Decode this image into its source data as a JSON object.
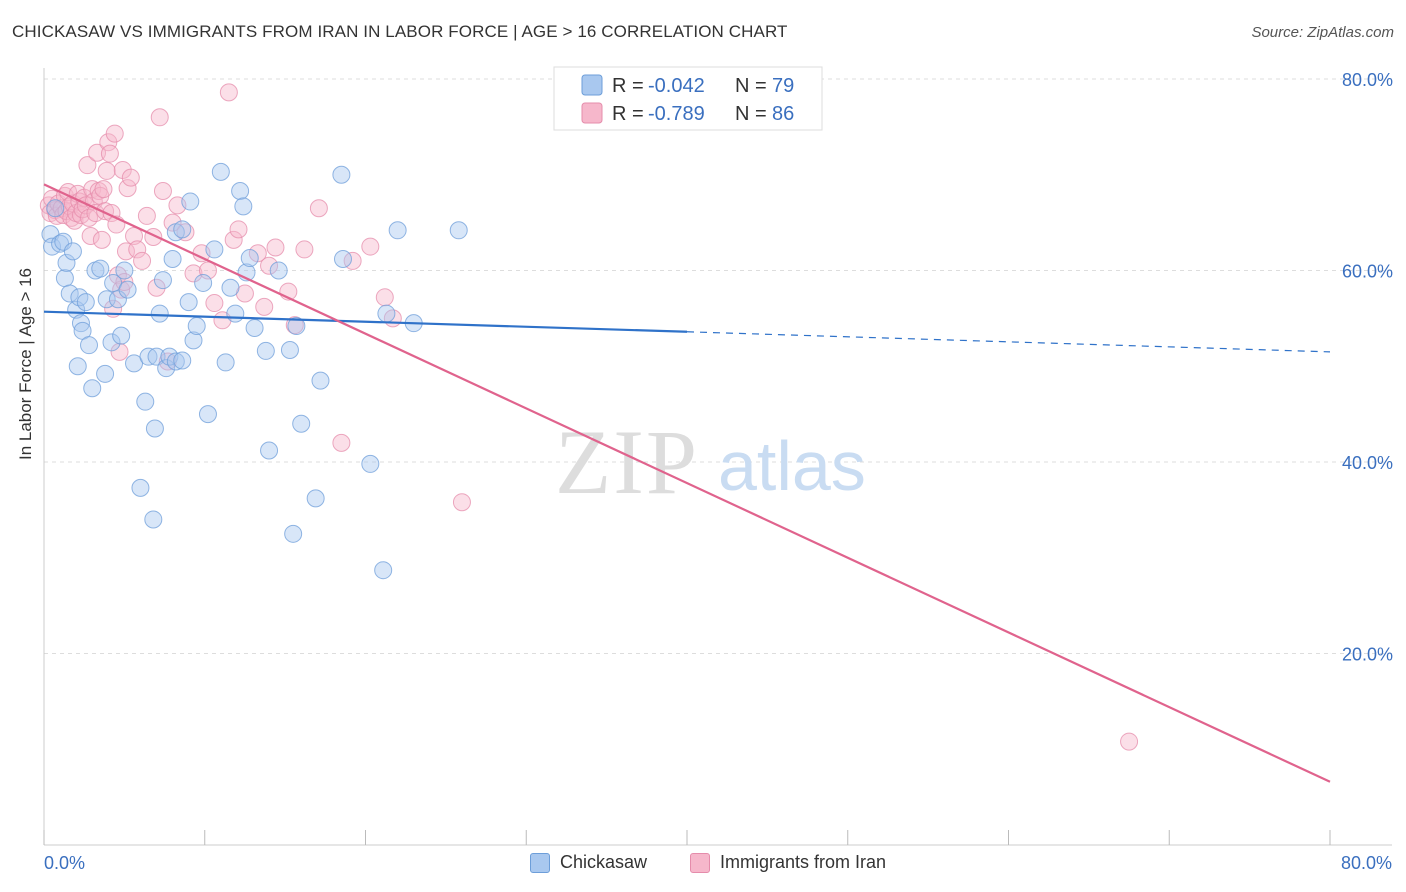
{
  "header": {
    "title": "CHICKASAW VS IMMIGRANTS FROM IRAN IN LABOR FORCE | AGE > 16 CORRELATION CHART",
    "source": "Source: ZipAtlas.com"
  },
  "watermark": {
    "zip": "ZIP",
    "atlas": "atlas"
  },
  "colors": {
    "chickasaw_fill": "#a9c8ef",
    "chickasaw_line": "#2f72c9",
    "iran_fill": "#f6b7cb",
    "iran_line": "#e0638d",
    "tick_label": "#3a6fbf",
    "grid": "#dddddd"
  },
  "legend_top": [
    {
      "r_label": "R = ",
      "r_value": "-0.042",
      "n_label": "N = ",
      "n_value": "79"
    },
    {
      "r_label": "R = ",
      "r_value": "-0.789",
      "n_label": "N = ",
      "n_value": "86"
    }
  ],
  "chart_data": {
    "type": "scatter",
    "title": "CHICKASAW VS IMMIGRANTS FROM IRAN IN LABOR FORCE | AGE > 16 CORRELATION CHART",
    "xlabel": "",
    "ylabel": "In Labor Force | Age > 16",
    "xlim": [
      0,
      80
    ],
    "ylim": [
      0,
      80
    ],
    "x_tick_labels": [
      "0.0%",
      "80.0%"
    ],
    "y_ticks": [
      20,
      40,
      60,
      80
    ],
    "y_tick_labels": [
      "20.0%",
      "40.0%",
      "60.0%",
      "80.0%"
    ],
    "grid": true,
    "legend_position": "bottom",
    "series": [
      {
        "name": "Chickasaw",
        "r": -0.042,
        "n": 79,
        "trend": {
          "x": [
            0,
            40,
            80
          ],
          "y": [
            55.7,
            53.6,
            51.5
          ],
          "solid_until": 40
        },
        "points": [
          [
            0.4,
            63.8
          ],
          [
            0.5,
            62.5
          ],
          [
            0.7,
            66.5
          ],
          [
            1.0,
            62.8
          ],
          [
            1.2,
            63.0
          ],
          [
            1.3,
            59.2
          ],
          [
            1.4,
            60.8
          ],
          [
            1.6,
            57.6
          ],
          [
            1.8,
            62.0
          ],
          [
            2.0,
            55.9
          ],
          [
            2.1,
            50.0
          ],
          [
            2.2,
            57.2
          ],
          [
            2.3,
            54.5
          ],
          [
            2.4,
            53.7
          ],
          [
            2.6,
            56.7
          ],
          [
            2.8,
            52.2
          ],
          [
            3.0,
            47.7
          ],
          [
            3.2,
            60.0
          ],
          [
            3.5,
            60.2
          ],
          [
            3.8,
            49.2
          ],
          [
            3.9,
            57.0
          ],
          [
            4.2,
            52.5
          ],
          [
            4.3,
            58.7
          ],
          [
            4.6,
            57.0
          ],
          [
            4.8,
            53.2
          ],
          [
            5.0,
            60.0
          ],
          [
            5.2,
            58.0
          ],
          [
            5.6,
            50.3
          ],
          [
            6.0,
            37.3
          ],
          [
            6.3,
            46.3
          ],
          [
            6.5,
            51.0
          ],
          [
            6.8,
            34.0
          ],
          [
            6.9,
            43.5
          ],
          [
            7.0,
            51.0
          ],
          [
            7.2,
            55.5
          ],
          [
            7.4,
            59.0
          ],
          [
            7.6,
            49.8
          ],
          [
            7.8,
            51.0
          ],
          [
            8.2,
            50.5
          ],
          [
            8.6,
            50.6
          ],
          [
            8.0,
            61.2
          ],
          [
            8.2,
            64.0
          ],
          [
            8.6,
            64.3
          ],
          [
            9.1,
            67.2
          ],
          [
            9.0,
            56.7
          ],
          [
            9.3,
            52.7
          ],
          [
            9.5,
            54.2
          ],
          [
            9.9,
            58.7
          ],
          [
            10.2,
            45.0
          ],
          [
            10.6,
            62.2
          ],
          [
            11.0,
            70.3
          ],
          [
            11.3,
            50.4
          ],
          [
            11.6,
            58.2
          ],
          [
            11.9,
            55.5
          ],
          [
            12.2,
            68.3
          ],
          [
            12.4,
            66.7
          ],
          [
            12.6,
            59.8
          ],
          [
            12.8,
            61.3
          ],
          [
            13.1,
            54.0
          ],
          [
            13.8,
            51.6
          ],
          [
            14.0,
            41.2
          ],
          [
            14.6,
            60.0
          ],
          [
            15.3,
            51.7
          ],
          [
            15.5,
            32.5
          ],
          [
            15.7,
            54.2
          ],
          [
            16.0,
            44.0
          ],
          [
            16.9,
            36.2
          ],
          [
            17.2,
            48.5
          ],
          [
            18.5,
            70.0
          ],
          [
            18.6,
            61.2
          ],
          [
            20.3,
            39.8
          ],
          [
            21.1,
            28.7
          ],
          [
            21.3,
            55.5
          ],
          [
            22.0,
            64.2
          ],
          [
            23.0,
            54.5
          ],
          [
            25.8,
            64.2
          ],
          [
            35.0,
            75.7
          ]
        ]
      },
      {
        "name": "Immigrants from Iran",
        "r": -0.789,
        "n": 86,
        "trend": {
          "x": [
            0,
            80
          ],
          "y": [
            69.0,
            6.6
          ]
        },
        "points": [
          [
            0.3,
            66.8
          ],
          [
            0.4,
            66.0
          ],
          [
            0.5,
            67.5
          ],
          [
            0.7,
            66.3
          ],
          [
            0.8,
            65.7
          ],
          [
            0.9,
            67.0
          ],
          [
            1.1,
            66.5
          ],
          [
            1.2,
            65.8
          ],
          [
            1.3,
            67.8
          ],
          [
            1.4,
            66.2
          ],
          [
            1.5,
            68.2
          ],
          [
            1.6,
            66.7
          ],
          [
            1.7,
            65.5
          ],
          [
            1.8,
            67.0
          ],
          [
            1.9,
            65.2
          ],
          [
            2.0,
            66.0
          ],
          [
            2.1,
            68.0
          ],
          [
            2.2,
            67.2
          ],
          [
            2.3,
            65.8
          ],
          [
            2.4,
            66.4
          ],
          [
            2.5,
            67.6
          ],
          [
            2.6,
            66.8
          ],
          [
            2.7,
            71.0
          ],
          [
            2.8,
            65.5
          ],
          [
            2.9,
            63.6
          ],
          [
            3.0,
            68.5
          ],
          [
            3.1,
            67.2
          ],
          [
            3.2,
            66.0
          ],
          [
            3.3,
            72.3
          ],
          [
            3.4,
            68.3
          ],
          [
            3.5,
            67.8
          ],
          [
            3.6,
            63.2
          ],
          [
            3.7,
            68.5
          ],
          [
            3.8,
            66.2
          ],
          [
            3.9,
            70.4
          ],
          [
            4.0,
            73.4
          ],
          [
            4.1,
            72.2
          ],
          [
            4.2,
            66.0
          ],
          [
            4.3,
            56.0
          ],
          [
            4.4,
            74.3
          ],
          [
            4.5,
            64.8
          ],
          [
            4.6,
            59.5
          ],
          [
            4.7,
            51.5
          ],
          [
            4.8,
            58.0
          ],
          [
            4.9,
            70.5
          ],
          [
            5.0,
            58.8
          ],
          [
            5.1,
            62.0
          ],
          [
            5.2,
            68.6
          ],
          [
            5.4,
            69.7
          ],
          [
            5.6,
            63.6
          ],
          [
            5.8,
            62.2
          ],
          [
            6.1,
            61.0
          ],
          [
            6.4,
            65.7
          ],
          [
            6.8,
            63.5
          ],
          [
            7.0,
            58.2
          ],
          [
            7.2,
            76.0
          ],
          [
            7.4,
            68.3
          ],
          [
            7.7,
            50.5
          ],
          [
            8.0,
            65.0
          ],
          [
            8.3,
            66.8
          ],
          [
            8.8,
            64.0
          ],
          [
            9.3,
            59.7
          ],
          [
            9.8,
            61.8
          ],
          [
            10.2,
            60.0
          ],
          [
            10.6,
            56.6
          ],
          [
            11.1,
            54.8
          ],
          [
            11.5,
            78.6
          ],
          [
            11.8,
            63.2
          ],
          [
            12.1,
            64.3
          ],
          [
            12.5,
            57.6
          ],
          [
            13.3,
            61.8
          ],
          [
            13.7,
            56.2
          ],
          [
            14.0,
            60.5
          ],
          [
            14.4,
            62.4
          ],
          [
            15.2,
            57.8
          ],
          [
            15.6,
            54.3
          ],
          [
            16.2,
            62.2
          ],
          [
            17.1,
            66.5
          ],
          [
            18.5,
            42.0
          ],
          [
            19.2,
            61.0
          ],
          [
            20.3,
            62.5
          ],
          [
            21.2,
            57.2
          ],
          [
            21.7,
            55.0
          ],
          [
            26.0,
            35.8
          ],
          [
            67.5,
            10.8
          ]
        ]
      }
    ]
  }
}
